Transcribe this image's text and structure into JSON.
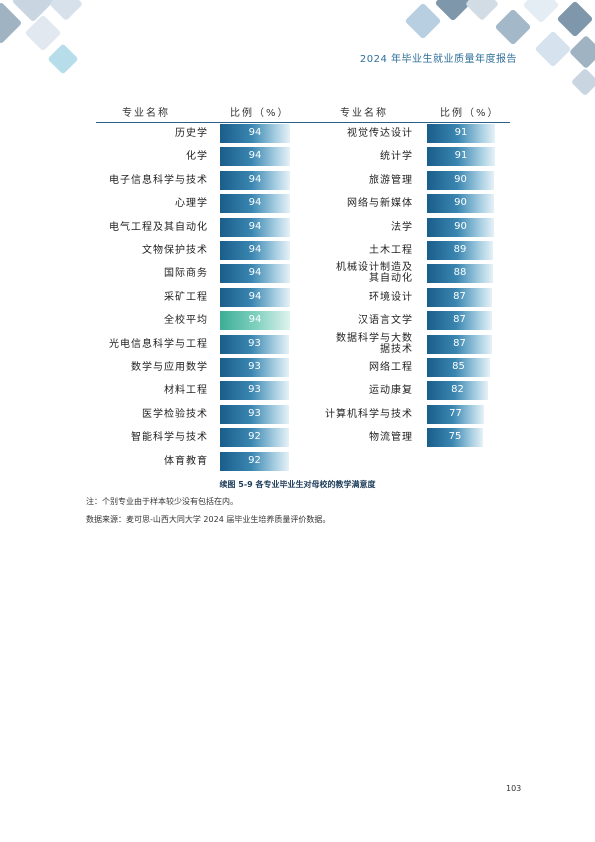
{
  "header": {
    "title": "2024 年毕业生就业质量年度报告"
  },
  "table": {
    "col_major": "专业名称",
    "col_ratio": "比例（%）",
    "left_rows": [
      {
        "name": "历史学",
        "value": "94"
      },
      {
        "name": "化学",
        "value": "94"
      },
      {
        "name": "电子信息科学与技术",
        "value": "94"
      },
      {
        "name": "心理学",
        "value": "94"
      },
      {
        "name": "电气工程及其自动化",
        "value": "94"
      },
      {
        "name": "文物保护技术",
        "value": "94"
      },
      {
        "name": "国际商务",
        "value": "94"
      },
      {
        "name": "采矿工程",
        "value": "94"
      },
      {
        "name": "全校平均",
        "value": "94",
        "highlight": true
      },
      {
        "name": "光电信息科学与工程",
        "value": "93"
      },
      {
        "name": "数学与应用数学",
        "value": "93"
      },
      {
        "name": "材料工程",
        "value": "93"
      },
      {
        "name": "医学检验技术",
        "value": "93"
      },
      {
        "name": "智能科学与技术",
        "value": "92"
      },
      {
        "name": "体育教育",
        "value": "92"
      }
    ],
    "right_rows": [
      {
        "name": "视觉传达设计",
        "value": "91"
      },
      {
        "name": "统计学",
        "value": "91"
      },
      {
        "name": "旅游管理",
        "value": "90"
      },
      {
        "name": "网络与新媒体",
        "value": "90"
      },
      {
        "name": "法学",
        "value": "90"
      },
      {
        "name": "土木工程",
        "value": "89"
      },
      {
        "name": "机械设计制造及其自动化",
        "value": "88"
      },
      {
        "name": "环境设计",
        "value": "87"
      },
      {
        "name": "汉语言文学",
        "value": "87"
      },
      {
        "name": "数据科学与大数据技术",
        "value": "87"
      },
      {
        "name": "网络工程",
        "value": "85"
      },
      {
        "name": "运动康复",
        "value": "82"
      },
      {
        "name": "计算机科学与技术",
        "value": "77"
      },
      {
        "name": "物流管理",
        "value": "75"
      }
    ]
  },
  "caption": "续图 5-9 各专业毕业生对母校的教学满意度",
  "notes": {
    "note1": "注：个别专业由于样本较少没有包括在内。",
    "note2": "数据来源：麦可思-山西大同大学 2024 届毕业生培养质量评价数据。"
  },
  "page_number": "103",
  "colors": {
    "bar": "#1a5d8a",
    "highlight_bar": "#3cae96",
    "accent": "#2f6f9a"
  }
}
